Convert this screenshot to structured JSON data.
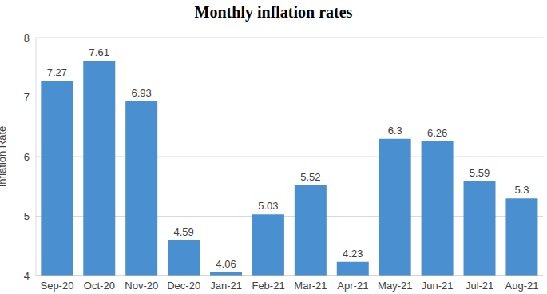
{
  "chart_data": {
    "type": "bar",
    "title": "Monthly inflation rates",
    "y_label": "Inflation Rate",
    "categories": [
      "Sep-20",
      "Oct-20",
      "Nov-20",
      "Dec-20",
      "Jan-21",
      "Feb-21",
      "Mar-21",
      "Apr-21",
      "May-21",
      "Jun-21",
      "Jul-21",
      "Aug-21"
    ],
    "values": [
      7.27,
      7.61,
      6.93,
      4.59,
      4.06,
      5.03,
      5.52,
      4.23,
      6.3,
      6.26,
      5.59,
      5.3
    ],
    "color": "#4a90d0",
    "ylim": [
      4,
      8
    ],
    "yticks": [
      4,
      5,
      6,
      7,
      8
    ],
    "grid": true,
    "data_labels": true
  }
}
